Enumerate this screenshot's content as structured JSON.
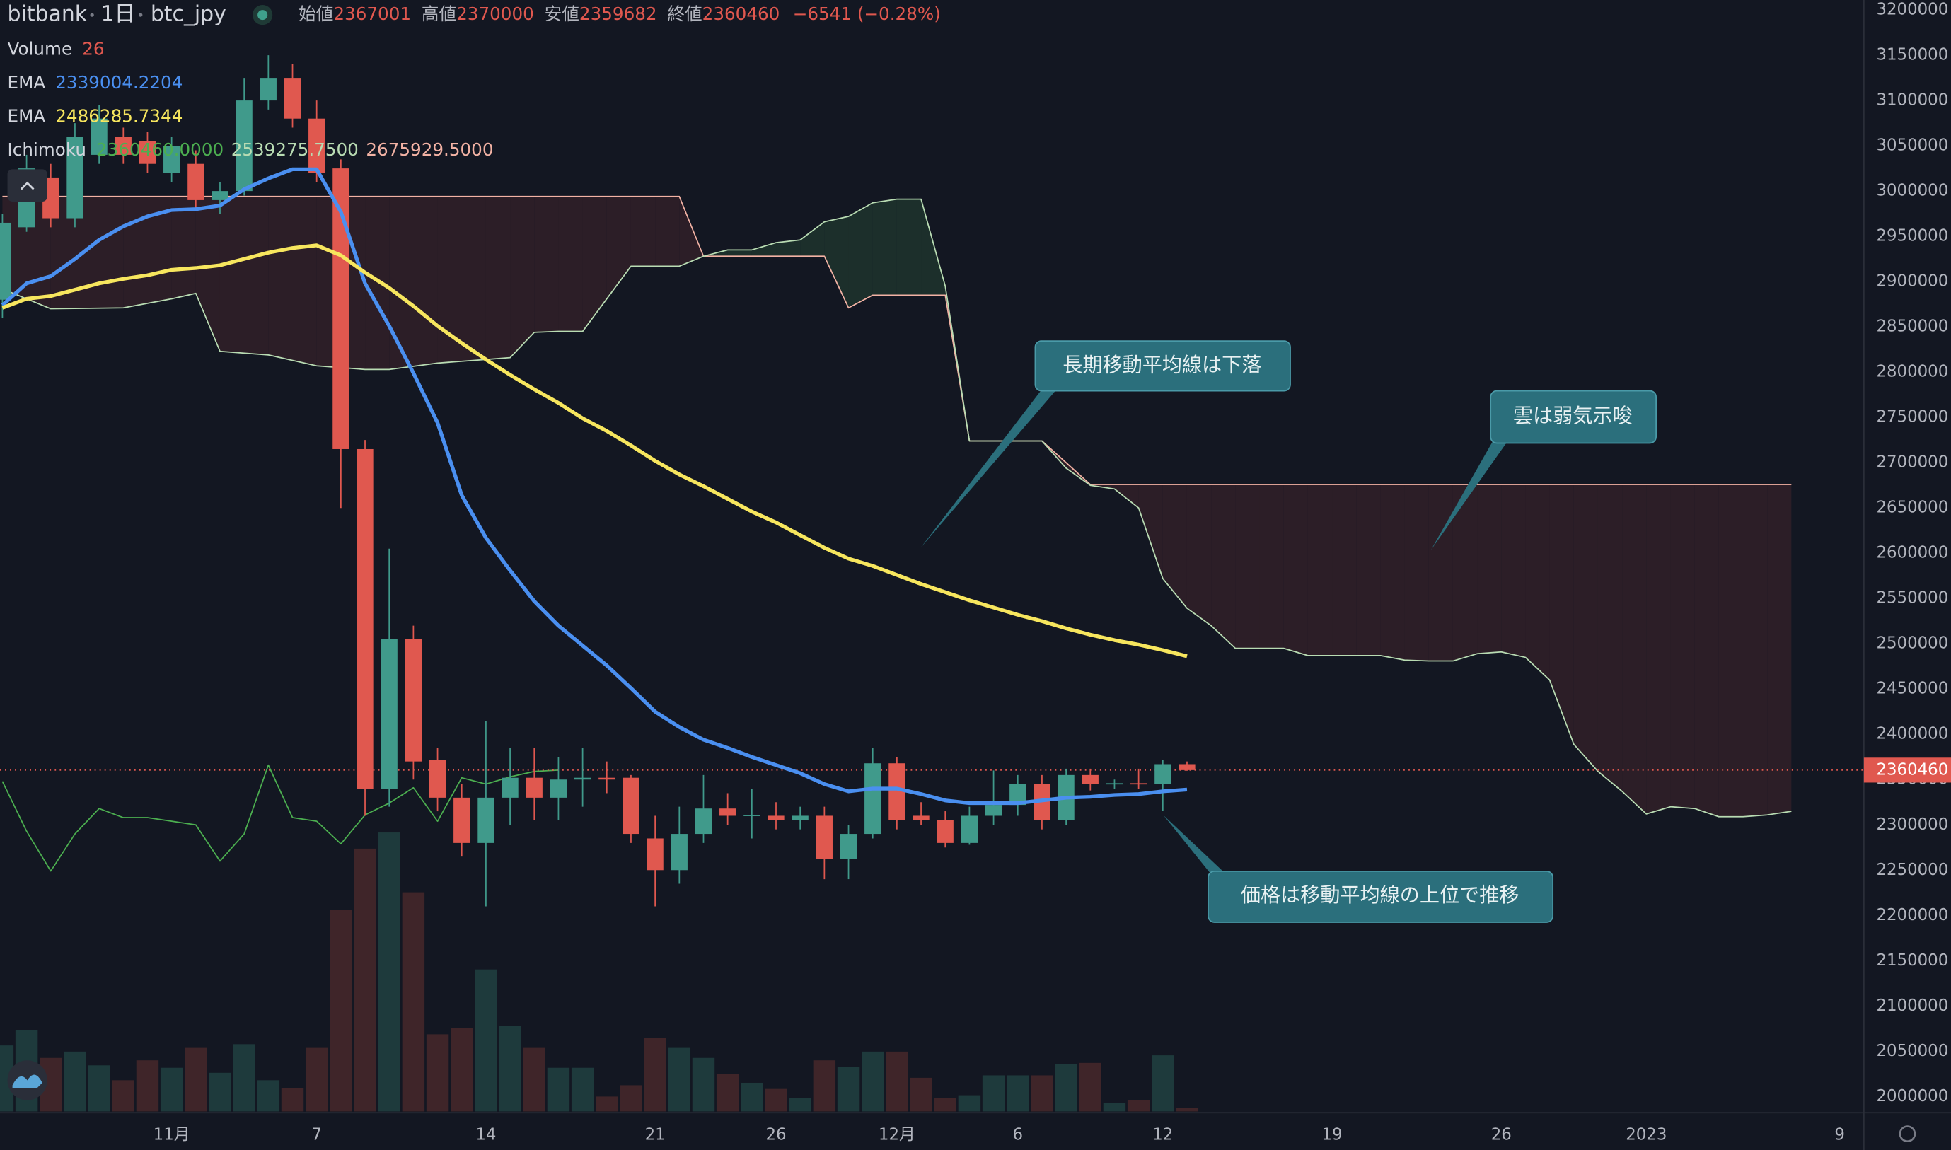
{
  "header": {
    "exchange": "bitbank",
    "interval": "1日",
    "symbol": "btc_jpy",
    "open_label": "始値",
    "high_label": "高値",
    "low_label": "安値",
    "close_label": "終値",
    "change": "−6541 (−0.28%)"
  },
  "chart_data": {
    "type": "candlestick",
    "x": [
      -7,
      -6,
      -5,
      -4,
      -3,
      -2,
      -1,
      0,
      1,
      2,
      3,
      4,
      5,
      6,
      7,
      8,
      9,
      10,
      11,
      12,
      13,
      14,
      15,
      16,
      17,
      18,
      19,
      20,
      21,
      22,
      23,
      24,
      25,
      26,
      27,
      28,
      29,
      30,
      31,
      32,
      33,
      34,
      35,
      36,
      37,
      38,
      39,
      40,
      41,
      42
    ],
    "open": [
      2880000,
      2960000,
      3015000,
      2970000,
      3040000,
      3060000,
      3055000,
      3020000,
      3030000,
      2990000,
      3000000,
      3100000,
      3125000,
      3080000,
      3025000,
      2715000,
      2340000,
      2505000,
      2372000,
      2330000,
      2280000,
      2330000,
      2352000,
      2330000,
      2350000,
      2352000,
      2352000,
      2285000,
      2250000,
      2290000,
      2318000,
      2310000,
      2310000,
      2305000,
      2310000,
      2262000,
      2290000,
      2368000,
      2310000,
      2305000,
      2280000,
      2310000,
      2322000,
      2345000,
      2305000,
      2355000,
      2345000,
      2346000,
      2345000,
      2367001
    ],
    "high": [
      2975000,
      3040000,
      3030000,
      3075000,
      3095000,
      3070000,
      3065000,
      3060000,
      3045000,
      3010000,
      3125000,
      3150000,
      3140000,
      3100000,
      3035000,
      2725000,
      2605000,
      2520000,
      2385000,
      2345000,
      2415000,
      2385000,
      2385000,
      2375000,
      2385000,
      2370000,
      2355000,
      2310000,
      2320000,
      2355000,
      2335000,
      2340000,
      2325000,
      2320000,
      2320000,
      2300000,
      2385000,
      2375000,
      2325000,
      2315000,
      2320000,
      2360000,
      2355000,
      2355000,
      2362000,
      2362000,
      2350000,
      2362000,
      2372000,
      2370000
    ],
    "low": [
      2860000,
      2955000,
      2960000,
      2960000,
      3030000,
      3030000,
      3020000,
      3010000,
      2980000,
      2975000,
      2995000,
      3090000,
      3070000,
      3010000,
      2650000,
      2310000,
      2320000,
      2350000,
      2315000,
      2265000,
      2210000,
      2300000,
      2305000,
      2305000,
      2320000,
      2335000,
      2280000,
      2210000,
      2235000,
      2280000,
      2300000,
      2285000,
      2295000,
      2295000,
      2240000,
      2240000,
      2285000,
      2295000,
      2300000,
      2275000,
      2278000,
      2300000,
      2310000,
      2295000,
      2300000,
      2338000,
      2340000,
      2340000,
      2315000,
      2359682
    ],
    "close": [
      2965000,
      3025000,
      2970000,
      3060000,
      3080000,
      3040000,
      3030000,
      3050000,
      2990000,
      3000000,
      3100000,
      3125000,
      3080000,
      3020000,
      2715000,
      2340000,
      2505000,
      2370000,
      2330000,
      2280000,
      2330000,
      2352000,
      2330000,
      2350000,
      2352000,
      2350000,
      2290000,
      2250000,
      2290000,
      2318000,
      2310000,
      2311000,
      2305000,
      2310000,
      2262000,
      2290000,
      2368000,
      2305000,
      2305000,
      2280000,
      2310000,
      2322000,
      2345000,
      2305000,
      2355000,
      2345000,
      2346000,
      2345000,
      2367001,
      2360460
    ],
    "up_color": "#409a8b",
    "down_color": "#e0584f",
    "volume": {
      "name": "Volume",
      "up_color": "#1e3a3c",
      "down_color": "#3f2529",
      "values": [
        461,
        566,
        374,
        418,
        322,
        218,
        357,
        305,
        444,
        270,
        470,
        218,
        165,
        444,
        1409,
        1836,
        1949,
        1531,
        539,
        583,
        992,
        600,
        444,
        305,
        305,
        104,
        183,
        513,
        444,
        374,
        261,
        200,
        157,
        96,
        357,
        313,
        418,
        418,
        235,
        96,
        113,
        252,
        252,
        252,
        331,
        339,
        61,
        78,
        392,
        26
      ]
    },
    "series": [
      {
        "name": "EMA",
        "color": "#4a8ff0",
        "values": [
          2874000,
          2898000,
          2906000,
          2925000,
          2946000,
          2961000,
          2972000,
          2979000,
          2980000,
          2984000,
          3002000,
          3014000,
          3024000,
          3024000,
          2977000,
          2898000,
          2851000,
          2799000,
          2744000,
          2664000,
          2617000,
          2581000,
          2547000,
          2520000,
          2498000,
          2476000,
          2451000,
          2425000,
          2408000,
          2394000,
          2385000,
          2375000,
          2366000,
          2357000,
          2345000,
          2337000,
          2340000,
          2340000,
          2334000,
          2327000,
          2324000,
          2324000,
          2324000,
          2327000,
          2330000,
          2331000,
          2333000,
          2334000,
          2337000,
          2339004.2204
        ]
      },
      {
        "name": "EMA",
        "color": "#f7e65e",
        "values": [
          2871000,
          2881000,
          2884000,
          2891000,
          2898000,
          2903000,
          2907000,
          2913000,
          2915000,
          2918000,
          2925000,
          2932000,
          2937000,
          2940000,
          2929000,
          2910000,
          2893000,
          2873000,
          2851000,
          2832000,
          2814000,
          2797000,
          2781000,
          2766000,
          2749000,
          2735000,
          2719000,
          2702000,
          2687000,
          2674000,
          2660000,
          2646000,
          2634000,
          2620000,
          2606000,
          2594000,
          2586000,
          2576000,
          2566000,
          2557000,
          2548000,
          2540000,
          2532000,
          2525000,
          2517000,
          2510000,
          2504000,
          2499000,
          2493000,
          2486285.7344
        ]
      }
    ],
    "ichimoku": {
      "name": "Ichimoku",
      "value_labels": [
        "2360460.0000",
        "2539275.7500",
        "2675929.5000"
      ],
      "lagging": {
        "color": "#4caf50",
        "x": [
          -7,
          -6,
          -5,
          -4,
          -3,
          -2,
          -1,
          0,
          1,
          2,
          3,
          4,
          5,
          6,
          7,
          8,
          9,
          10,
          11,
          12,
          13,
          14,
          15,
          16
        ],
        "values": [
          2348000,
          2293000,
          2249000,
          2290000,
          2318000,
          2308000,
          2308000,
          2304000,
          2300000,
          2260000,
          2290000,
          2366000,
          2308000,
          2304000,
          2279000,
          2311000,
          2324000,
          2341000,
          2304000,
          2352000,
          2345000,
          2353000,
          2359000,
          2360460
        ]
      },
      "span_x": [
        -7,
        -5,
        -2,
        0,
        1,
        2,
        4,
        6,
        8,
        9,
        11,
        13,
        14,
        15,
        16,
        17,
        18,
        19,
        20,
        21,
        22,
        23,
        24,
        25,
        26,
        27,
        28,
        29,
        30,
        31,
        32,
        33,
        35,
        36,
        37,
        38,
        39,
        40,
        41,
        42,
        43,
        44,
        45,
        46,
        47,
        48,
        49,
        50,
        51,
        52,
        53,
        54,
        55,
        56,
        57,
        58,
        59,
        60,
        61,
        62,
        63,
        64,
        65,
        66,
        67
      ],
      "span_a": {
        "color": "#b9dcb3",
        "values": [
          2892000,
          2870000,
          2871000,
          2881000,
          2887000,
          2823000,
          2819000,
          2807000,
          2803000,
          2803000,
          2810000,
          2814000,
          2816000,
          2844000,
          2845000,
          2845000,
          2881000,
          2917000,
          2917000,
          2917000,
          2928000,
          2935000,
          2935000,
          2943000,
          2946000,
          2966000,
          2972000,
          2987000,
          2991000,
          2991000,
          2895000,
          2724000,
          2724000,
          2724000,
          2694000,
          2675000,
          2671000,
          2650000,
          2572000,
          2539275.75,
          2520000,
          2495000,
          2495000,
          2495000,
          2487000,
          2487000,
          2487000,
          2487000,
          2482000,
          2481000,
          2481000,
          2489000,
          2491000,
          2485000,
          2460000,
          2389000,
          2359000,
          2337000,
          2312000,
          2320000,
          2318000,
          2309000,
          2309000,
          2311000,
          2315000
        ]
      },
      "span_b": {
        "color": "#f2b2a4",
        "values": [
          2994000,
          2994000,
          2994000,
          2994000,
          2994000,
          2994000,
          2994000,
          2994000,
          2994000,
          2994000,
          2994000,
          2994000,
          2994000,
          2994000,
          2994000,
          2994000,
          2994000,
          2994000,
          2994000,
          2994000,
          2928000,
          2928000,
          2928000,
          2928000,
          2928000,
          2928000,
          2871000,
          2885000,
          2885000,
          2885000,
          2885000,
          2724000,
          2724000,
          2724000,
          2700000,
          2675929.5,
          2675929.5,
          2675929.5,
          2675929.5,
          2675929.5,
          2675929.5,
          2675929.5,
          2675929.5,
          2675929.5,
          2675929.5,
          2675929.5,
          2675929.5,
          2675929.5,
          2675929.5,
          2675929.5,
          2675929.5,
          2675929.5,
          2675929.5,
          2675929.5,
          2675929.5,
          2675929.5,
          2675929.5,
          2675929.5,
          2675929.5,
          2675929.5,
          2675929.5,
          2675929.5,
          2675929.5,
          2675929.5,
          2675929.5
        ]
      },
      "cloud_colors": [
        "#1c2f2b",
        "#2c1e27"
      ]
    },
    "xlim": [
      -7.1,
      70
    ],
    "xticks": [
      {
        "value": 0,
        "label": "11月"
      },
      {
        "value": 6,
        "label": "7"
      },
      {
        "value": 13,
        "label": "14"
      },
      {
        "value": 20,
        "label": "21"
      },
      {
        "value": 25,
        "label": "26"
      },
      {
        "value": 30,
        "label": "12月"
      },
      {
        "value": 35,
        "label": "6"
      },
      {
        "value": 41,
        "label": "12"
      },
      {
        "value": 48,
        "label": "19"
      },
      {
        "value": 55,
        "label": "26"
      },
      {
        "value": 61,
        "label": "2023"
      },
      {
        "value": 69,
        "label": "9"
      }
    ],
    "ylim": [
      1983500,
      3211000
    ],
    "yticks": [
      2000000,
      2050000,
      2100000,
      2150000,
      2200000,
      2250000,
      2300000,
      2350000,
      2400000,
      2450000,
      2500000,
      2550000,
      2600000,
      2650000,
      2700000,
      2750000,
      2800000,
      2850000,
      2900000,
      2950000,
      3000000,
      3050000,
      3100000,
      3150000,
      3200000
    ],
    "grid": false,
    "annotations": [
      {
        "text": "長期移動平均線は下落"
      },
      {
        "text": "雲は弱気示唆"
      },
      {
        "text": "価格は移動平均線の上位で推移"
      }
    ]
  }
}
